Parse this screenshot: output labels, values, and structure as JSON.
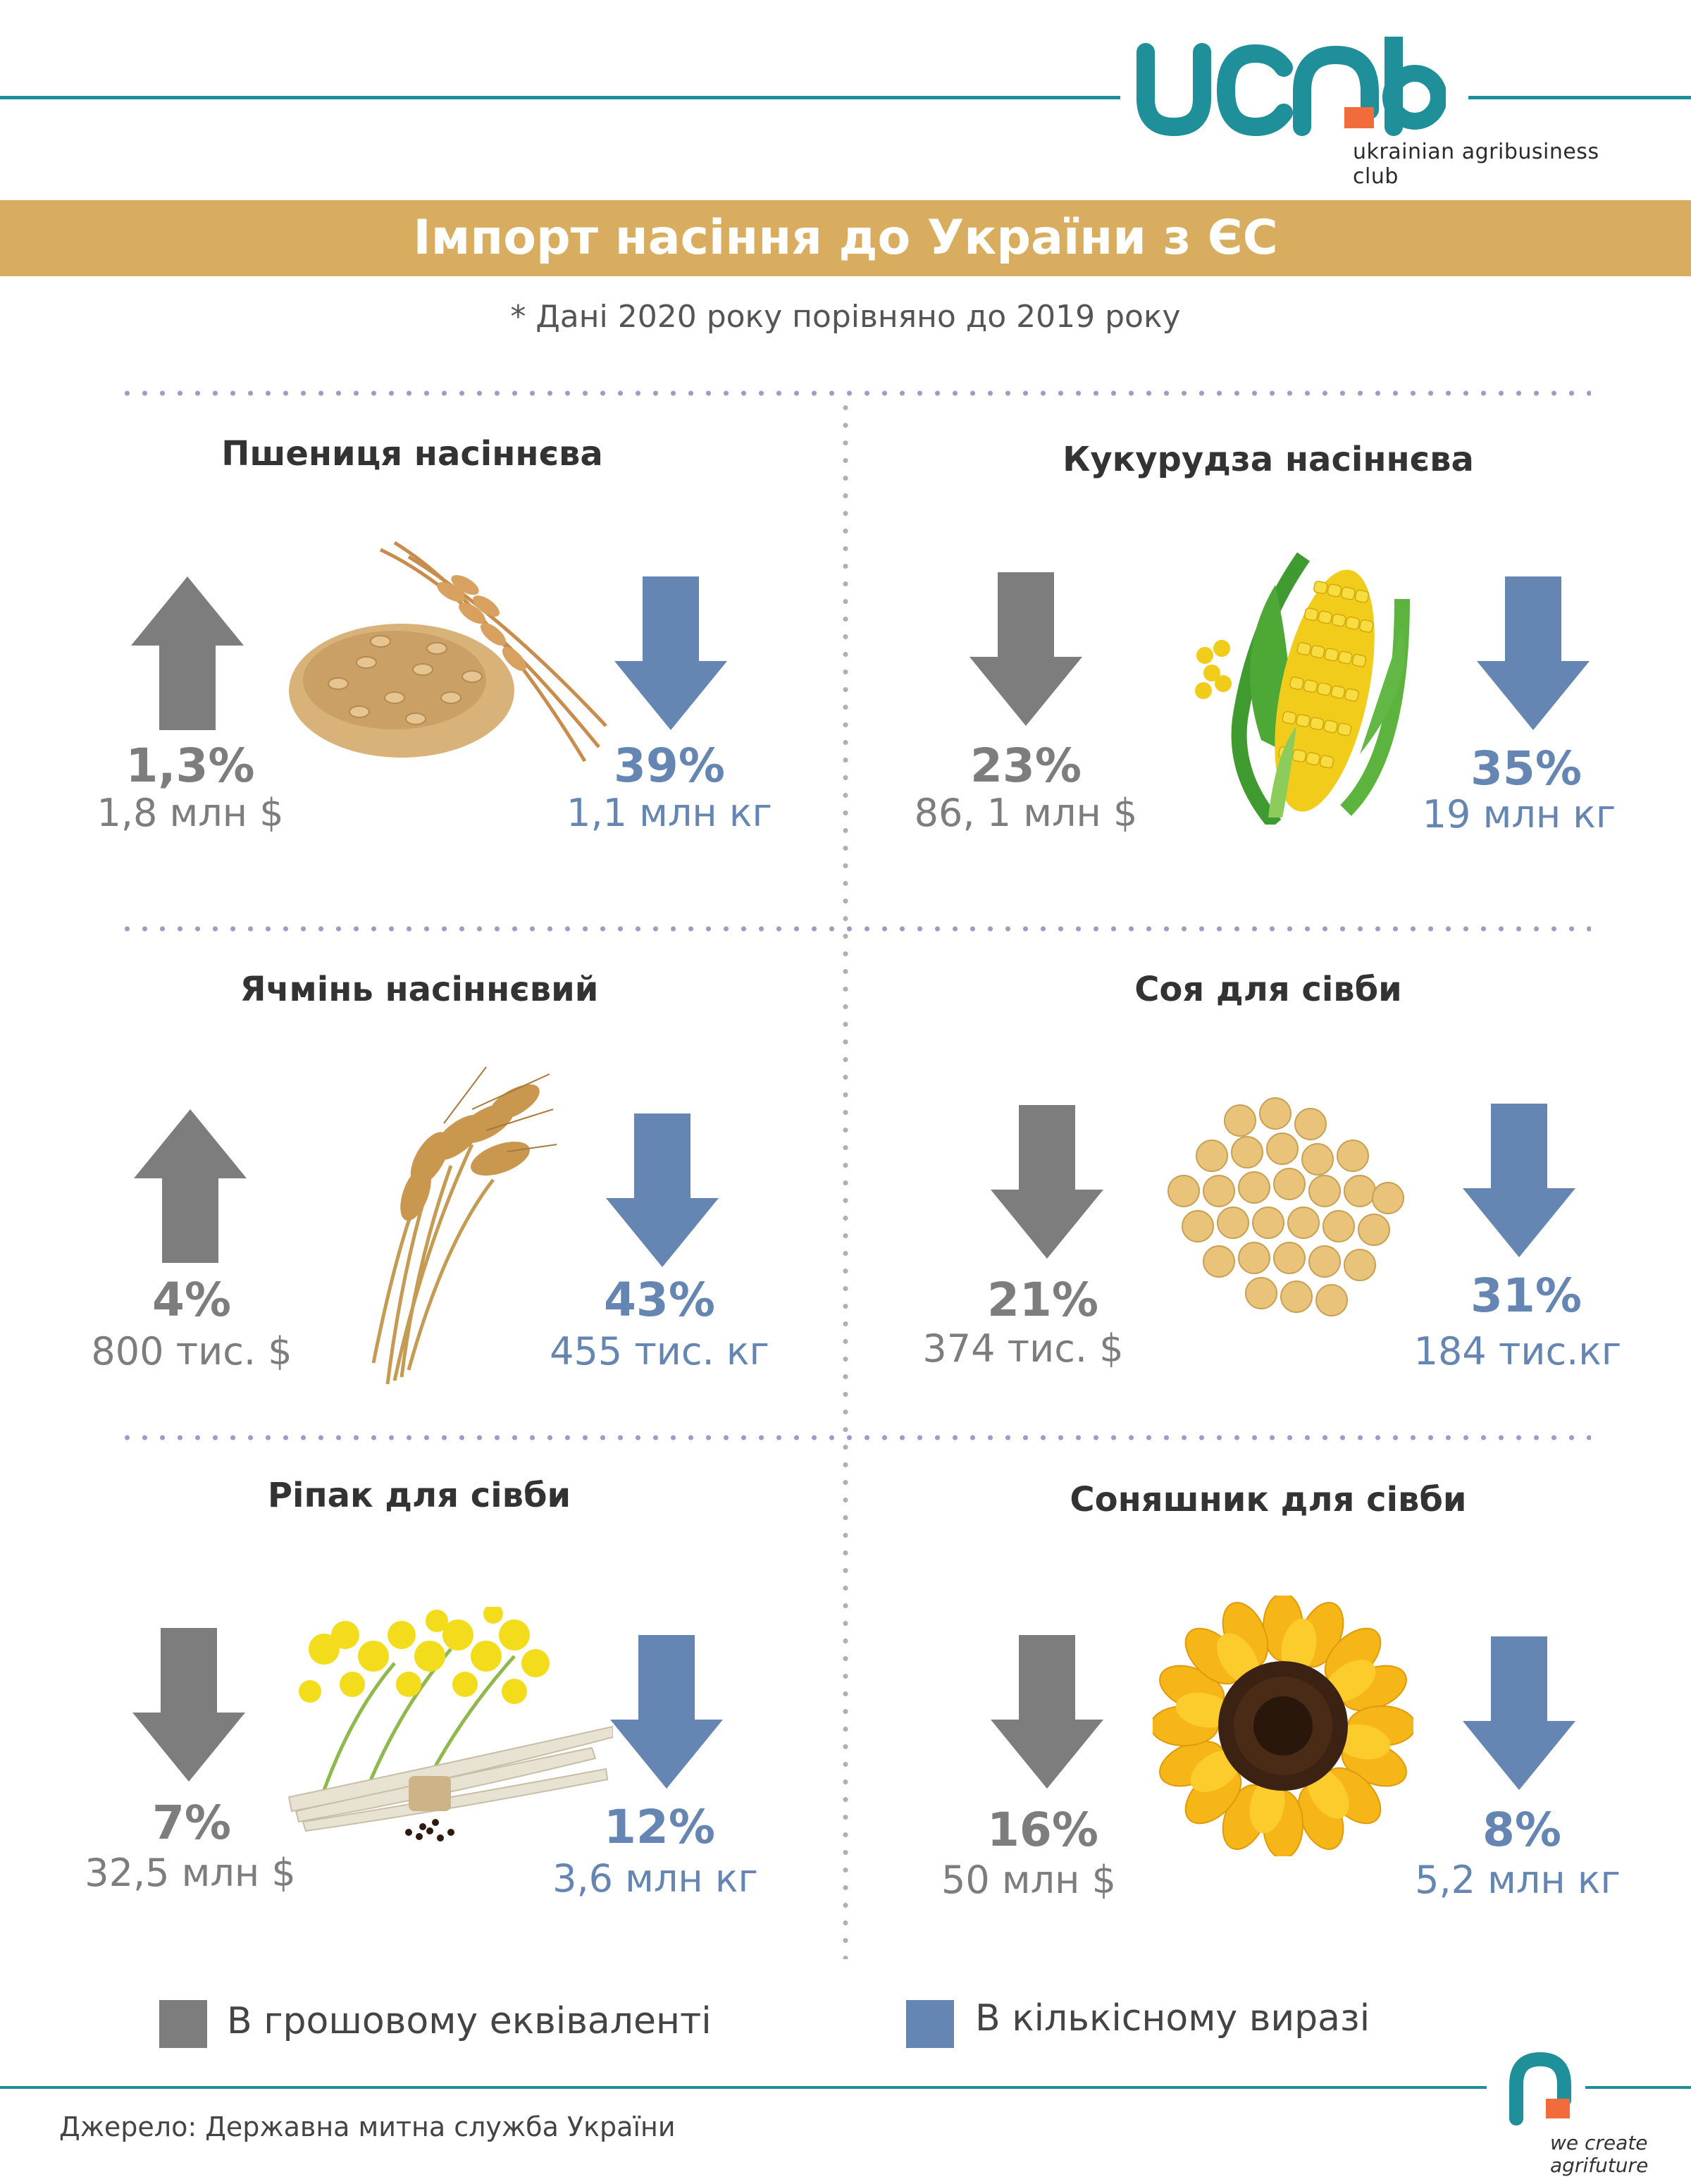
{
  "header": {
    "logo_text": "ucab",
    "logo_tagline": "ukrainian agribusiness club",
    "title": "Імпорт насіння до України з ЄС",
    "subtitle": "* Дані 2020 року порівняно до 2019 року"
  },
  "colors": {
    "teal": "#1f8f99",
    "orange": "#f26b3a",
    "gold": "#d9ad5f",
    "gray_arrow": "#7d7d7d",
    "blue_arrow": "#6585b3"
  },
  "crops": [
    {
      "name": "Пшениця насіннєва",
      "money_direction": "up",
      "money_pct": "1,3%",
      "money_value": "1,8 млн $",
      "qty_direction": "down",
      "qty_pct": "39%",
      "qty_value": "1,1 млн кг",
      "icon": "wheat-grain-icon"
    },
    {
      "name": "Кукурудза насіннєва",
      "money_direction": "down",
      "money_pct": "23%",
      "money_value": "86, 1 млн $",
      "qty_direction": "down",
      "qty_pct": "35%",
      "qty_value": "19 млн кг",
      "icon": "corn-icon"
    },
    {
      "name": "Ячмінь насіннєвий",
      "money_direction": "up",
      "money_pct": "4%",
      "money_value": "800 тис. $",
      "qty_direction": "down",
      "qty_pct": "43%",
      "qty_value": "455 тис. кг",
      "icon": "barley-icon"
    },
    {
      "name": "Соя для сівби",
      "money_direction": "down",
      "money_pct": "21%",
      "money_value": "374 тис. $",
      "qty_direction": "down",
      "qty_pct": "31%",
      "qty_value": "184 тис.кг",
      "icon": "soybean-icon"
    },
    {
      "name": "Ріпак для сівби",
      "money_direction": "down",
      "money_pct": "7%",
      "money_value": "32,5 млн $",
      "qty_direction": "down",
      "qty_pct": "12%",
      "qty_value": "3,6 млн кг",
      "icon": "rapeseed-icon"
    },
    {
      "name": "Соняшник для сівби",
      "money_direction": "down",
      "money_pct": "16%",
      "money_value": "50 млн $",
      "qty_direction": "down",
      "qty_pct": "8%",
      "qty_value": "5,2 млн кг",
      "icon": "sunflower-icon"
    }
  ],
  "legend": {
    "money": "В грошовому еквіваленті",
    "quantity": "В кількісному виразі"
  },
  "footer": {
    "source": "Джерело: Державна митна служба України",
    "tagline_1": "we create",
    "tagline_2": "agrifuture"
  }
}
